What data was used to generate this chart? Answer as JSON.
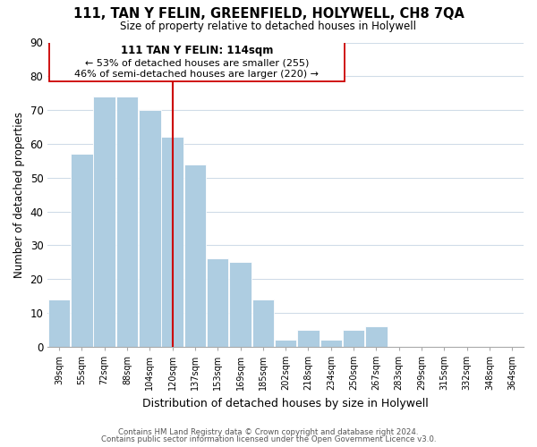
{
  "title": "111, TAN Y FELIN, GREENFIELD, HOLYWELL, CH8 7QA",
  "subtitle": "Size of property relative to detached houses in Holywell",
  "xlabel": "Distribution of detached houses by size in Holywell",
  "ylabel": "Number of detached properties",
  "bar_color": "#aecde1",
  "vline_color": "#cc0000",
  "annotation_title": "111 TAN Y FELIN: 114sqm",
  "annotation_line1": "← 53% of detached houses are smaller (255)",
  "annotation_line2": "46% of semi-detached houses are larger (220) →",
  "bin_labels": [
    "39sqm",
    "55sqm",
    "72sqm",
    "88sqm",
    "104sqm",
    "120sqm",
    "137sqm",
    "153sqm",
    "169sqm",
    "185sqm",
    "202sqm",
    "218sqm",
    "234sqm",
    "250sqm",
    "267sqm",
    "283sqm",
    "299sqm",
    "315sqm",
    "332sqm",
    "348sqm",
    "364sqm"
  ],
  "counts": [
    14,
    57,
    74,
    74,
    70,
    62,
    54,
    26,
    25,
    14,
    2,
    5,
    2,
    5,
    6,
    0,
    0,
    0,
    0,
    0
  ],
  "vline_index": 5.0,
  "ylim": [
    0,
    90
  ],
  "yticks": [
    0,
    10,
    20,
    30,
    40,
    50,
    60,
    70,
    80,
    90
  ],
  "footer_line1": "Contains HM Land Registry data © Crown copyright and database right 2024.",
  "footer_line2": "Contains public sector information licensed under the Open Government Licence v3.0.",
  "background_color": "#ffffff",
  "grid_color": "#d0dce8"
}
